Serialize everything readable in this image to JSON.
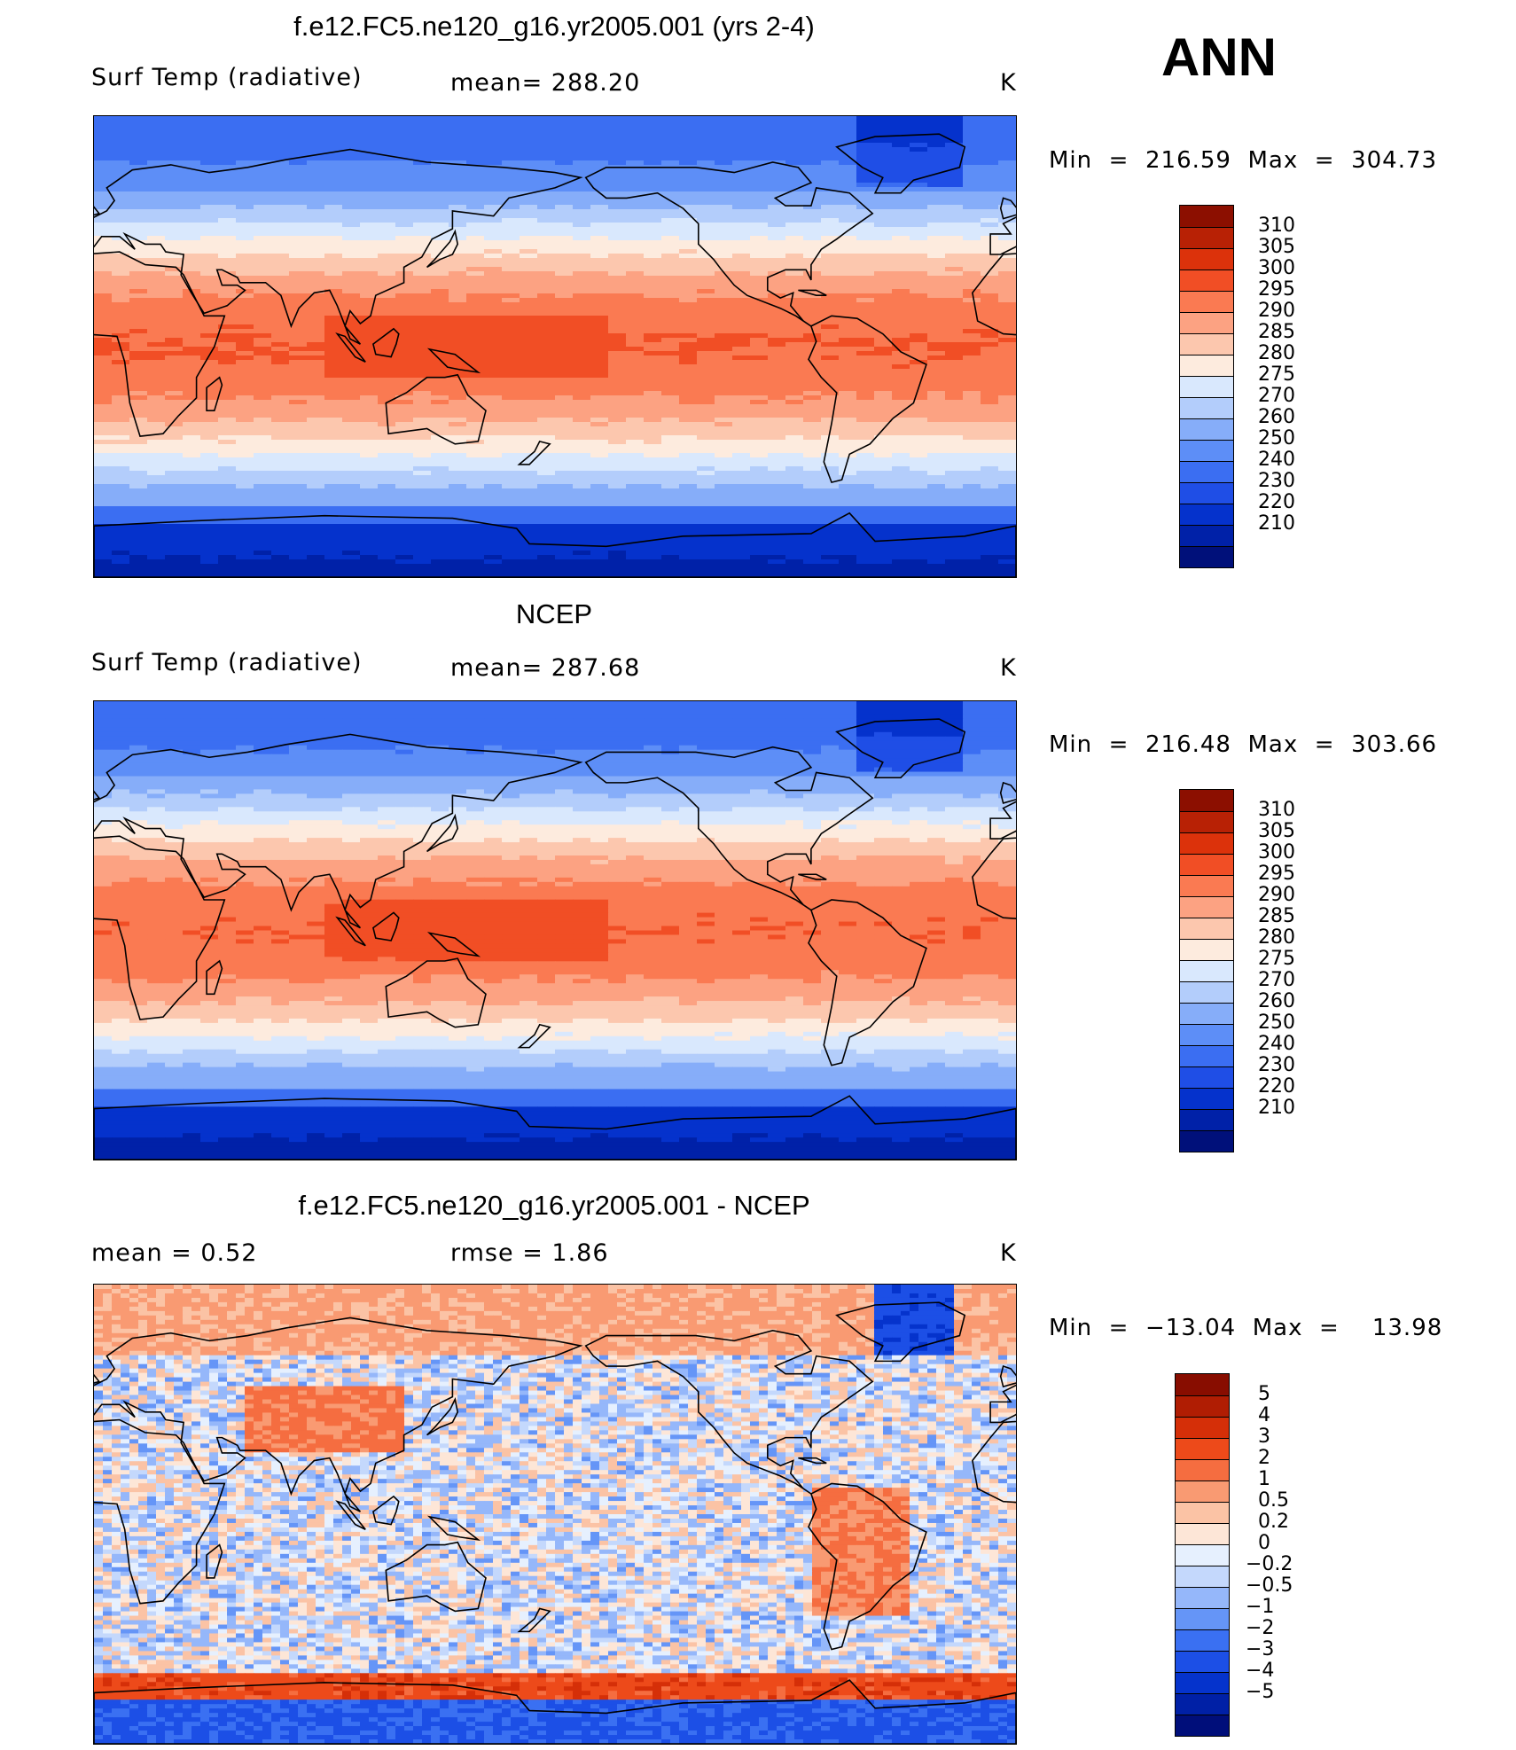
{
  "season_label": "ANN",
  "colors": {
    "temp_scale": [
      "#00107a",
      "#0021a8",
      "#0532cc",
      "#1f4ee6",
      "#3b6ef2",
      "#5d8ef7",
      "#86adf9",
      "#b3cdfb",
      "#d9e8fd",
      "#fdebde",
      "#fcc7ae",
      "#fca282",
      "#fa7a52",
      "#f14e25",
      "#dc320b",
      "#b82105",
      "#8c0f00"
    ],
    "diff_scale": [
      "#000e7a",
      "#0020a6",
      "#0533cc",
      "#1c4fe6",
      "#3a70f2",
      "#6595f7",
      "#95b7fa",
      "#c4d8fc",
      "#e6f0fe",
      "#fde6d7",
      "#fbc3a5",
      "#f99a72",
      "#f56d40",
      "#ed4a1a",
      "#d52f08",
      "#b01d03",
      "#880d00"
    ],
    "land_outline": "#000000"
  },
  "panels": [
    {
      "title": "f.e12.FC5.ne120_g16.yr2005.001 (yrs 2-4)",
      "variable": "Surf Temp (radiative)",
      "stat_left": "",
      "stat_mid": "mean=  288.20",
      "units": "K",
      "minmax": "Min  =  216.59  Max  =  304.73",
      "colorbar_ticks": [
        "310",
        "305",
        "300",
        "295",
        "290",
        "285",
        "280",
        "275",
        "270",
        "260",
        "250",
        "240",
        "230",
        "220",
        "210"
      ],
      "field": "model_temperature"
    },
    {
      "title": "NCEP",
      "variable": "Surf Temp (radiative)",
      "stat_left": "",
      "stat_mid": "mean=  287.68",
      "units": "K",
      "minmax": "Min  =  216.48  Max  =  303.66",
      "colorbar_ticks": [
        "310",
        "305",
        "300",
        "295",
        "290",
        "285",
        "280",
        "275",
        "270",
        "260",
        "250",
        "240",
        "230",
        "220",
        "210"
      ],
      "field": "obs_temperature"
    },
    {
      "title": "f.e12.FC5.ne120_g16.yr2005.001 - NCEP",
      "variable": "",
      "stat_left": "mean  =     0.52",
      "stat_mid": "rmse  =     1.86",
      "units": "K",
      "minmax": "Min  =  −13.04  Max  =    13.98",
      "colorbar_ticks": [
        "5",
        "4",
        "3",
        "2",
        "1",
        "0.5",
        "0.2",
        "0",
        "−0.2",
        "−0.5",
        "−1",
        "−2",
        "−3",
        "−4",
        "−5"
      ],
      "field": "difference"
    }
  ]
}
